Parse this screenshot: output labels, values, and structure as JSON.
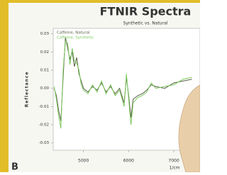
{
  "chart_data": {
    "type": "line",
    "title": "FTNIR Spectra",
    "subtitle": "Synthetic vs. Natural",
    "y_label": "Reflectance",
    "x_label": "1/cm",
    "panel_label": "B",
    "x": [
      4350,
      4400,
      4450,
      4500,
      4550,
      4600,
      4650,
      4700,
      4750,
      4800,
      4850,
      4900,
      4950,
      5000,
      5100,
      5200,
      5300,
      5400,
      5500,
      5600,
      5700,
      5800,
      5900,
      5950,
      6000,
      6050,
      6100,
      6200,
      6300,
      6400,
      6500,
      6600,
      6800,
      7000,
      7200,
      7400
    ],
    "series": [
      {
        "name": "Caffeine, Natural",
        "color": "#5a5f48",
        "values": [
          0.0,
          -0.004,
          -0.012,
          -0.018,
          0.006,
          0.028,
          0.022,
          0.016,
          0.02,
          0.012,
          0.017,
          0.008,
          0.004,
          0.0,
          -0.002,
          0.001,
          -0.001,
          0.003,
          -0.002,
          0.001,
          -0.003,
          0.0,
          -0.008,
          0.006,
          -0.004,
          -0.016,
          -0.006,
          -0.004,
          -0.003,
          -0.001,
          0.002,
          0.001,
          0.0,
          0.003,
          0.004,
          0.005
        ]
      },
      {
        "name": "Caffeine, Synthetic",
        "color": "#7cc95c",
        "values": [
          0.001,
          -0.006,
          -0.015,
          -0.022,
          0.01,
          0.026,
          0.025,
          0.013,
          0.022,
          0.015,
          0.014,
          0.01,
          0.002,
          -0.001,
          -0.003,
          0.002,
          -0.002,
          0.004,
          -0.003,
          0.002,
          -0.004,
          -0.001,
          -0.01,
          0.008,
          -0.006,
          -0.02,
          -0.008,
          -0.005,
          -0.004,
          -0.002,
          0.003,
          0.0,
          0.001,
          0.002,
          0.005,
          0.006
        ]
      }
    ],
    "xlim": [
      4330,
      7580
    ],
    "ylim": [
      -0.034,
      0.033
    ],
    "xticks": [
      5000,
      6000,
      7000
    ],
    "yticks": [
      0.03,
      0.02,
      0.01,
      {
        "value": 0,
        "label": "0.00"
      },
      -0.01,
      -0.02,
      -0.03
    ],
    "grid": false
  }
}
